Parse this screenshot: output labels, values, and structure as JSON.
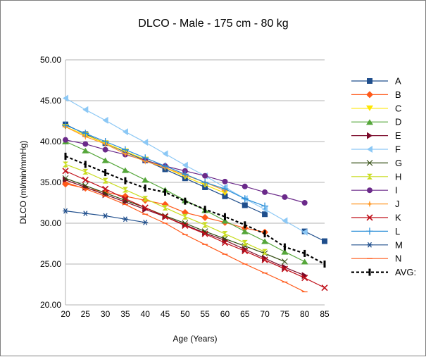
{
  "chart_data": {
    "type": "line",
    "title": "DLCO - Male - 175 cm - 80 kg",
    "xlabel": "Age (Years)",
    "ylabel": "DLCO (ml/min/mmHg)",
    "x": [
      20,
      25,
      30,
      35,
      40,
      45,
      50,
      55,
      60,
      65,
      70,
      75,
      80,
      85
    ],
    "x_ticks": [
      "20",
      "25",
      "30",
      "35",
      "40",
      "45",
      "50",
      "55",
      "60",
      "65",
      "70",
      "75",
      "80",
      "85"
    ],
    "ylim": [
      20,
      50
    ],
    "y_ticks": [
      "20.00",
      "25.00",
      "30.00",
      "35.00",
      "40.00",
      "45.00",
      "50.00"
    ],
    "grid": "horizontal",
    "legend_position": "right",
    "series": [
      {
        "name": "A",
        "color": "#1f4e8c",
        "marker": "square",
        "values": [
          42.1,
          40.9,
          39.8,
          38.7,
          37.7,
          36.6,
          35.5,
          34.4,
          33.3,
          32.2,
          31.1,
          null,
          29.0,
          27.8
        ]
      },
      {
        "name": "B",
        "color": "#ff5a1a",
        "marker": "diamond",
        "values": [
          34.8,
          34.3,
          33.8,
          33.3,
          32.8,
          32.3,
          31.3,
          30.7,
          30.1,
          29.4,
          28.9,
          null,
          null,
          null
        ]
      },
      {
        "name": "C",
        "color": "#ffe600",
        "marker": "triangle-down",
        "values": [
          41.8,
          40.8,
          39.8,
          38.8,
          37.8,
          36.8,
          35.7,
          34.7,
          33.7,
          null,
          null,
          null,
          null,
          null
        ]
      },
      {
        "name": "D",
        "color": "#55a63a",
        "marker": "triangle-up",
        "values": [
          40.0,
          38.9,
          37.7,
          36.5,
          35.3,
          34.1,
          32.8,
          31.6,
          30.3,
          29.0,
          27.8,
          26.5,
          25.3,
          null
        ]
      },
      {
        "name": "E",
        "color": "#7b0a2a",
        "marker": "triangle-right",
        "values": [
          35.3,
          34.4,
          33.5,
          32.6,
          31.7,
          30.8,
          29.8,
          28.8,
          27.9,
          26.8,
          25.7,
          24.6,
          23.6,
          null
        ]
      },
      {
        "name": "F",
        "color": "#8cc8f5",
        "marker": "triangle-left",
        "values": [
          45.3,
          43.9,
          42.6,
          41.2,
          39.9,
          38.5,
          37.1,
          35.8,
          34.4,
          33.0,
          31.7,
          30.3,
          28.9,
          null
        ]
      },
      {
        "name": "G",
        "color": "#2f4a0e",
        "marker": "bowtie",
        "values": [
          35.5,
          34.6,
          33.7,
          32.8,
          31.9,
          30.9,
          30.0,
          29.0,
          28.1,
          27.2,
          26.3,
          25.3,
          null,
          null
        ]
      },
      {
        "name": "H",
        "color": "#c8dc1e",
        "marker": "hourglass",
        "values": [
          37.2,
          36.3,
          35.2,
          34.1,
          33.0,
          31.9,
          30.8,
          29.8,
          28.7,
          27.6,
          26.5,
          null,
          null,
          null
        ]
      },
      {
        "name": "I",
        "color": "#6b2a8a",
        "marker": "circle",
        "values": [
          40.2,
          39.7,
          39.0,
          38.4,
          37.7,
          37.0,
          36.4,
          35.8,
          35.1,
          34.5,
          33.8,
          33.2,
          32.5,
          null
        ]
      },
      {
        "name": "J",
        "color": "#ff9a2a",
        "marker": "star",
        "values": [
          41.8,
          40.6,
          39.7,
          38.5,
          37.6,
          36.8,
          35.9,
          35.0,
          34.0,
          null,
          null,
          null,
          null,
          null
        ]
      },
      {
        "name": "K",
        "color": "#c0101a",
        "marker": "x",
        "values": [
          36.4,
          35.3,
          34.2,
          33.0,
          31.9,
          30.8,
          29.7,
          28.7,
          27.6,
          26.6,
          25.5,
          24.4,
          23.3,
          22.1
        ]
      },
      {
        "name": "L",
        "color": "#2b8fd8",
        "marker": "plus",
        "values": [
          42.0,
          41.0,
          40.0,
          39.0,
          38.0,
          37.0,
          36.0,
          35.0,
          34.2,
          33.0,
          32.1,
          null,
          null,
          null
        ]
      },
      {
        "name": "M",
        "color": "#1f4e8c",
        "marker": "asterisk",
        "values": [
          31.5,
          31.2,
          30.9,
          30.5,
          30.1,
          null,
          null,
          null,
          null,
          null,
          null,
          null,
          null,
          null
        ]
      },
      {
        "name": "N",
        "color": "#ff5a1a",
        "marker": "dash",
        "values": [
          35.0,
          34.2,
          33.3,
          32.3,
          31.1,
          30.0,
          28.6,
          27.4,
          26.2,
          25.0,
          23.9,
          22.8,
          21.6,
          null
        ]
      },
      {
        "name": "AVG:",
        "color": "#000000",
        "marker": "bar",
        "dashed": true,
        "values": [
          38.2,
          37.2,
          36.2,
          35.2,
          34.3,
          33.8,
          32.7,
          31.7,
          30.8,
          29.8,
          28.7,
          27.1,
          26.3,
          25.0
        ]
      }
    ]
  }
}
